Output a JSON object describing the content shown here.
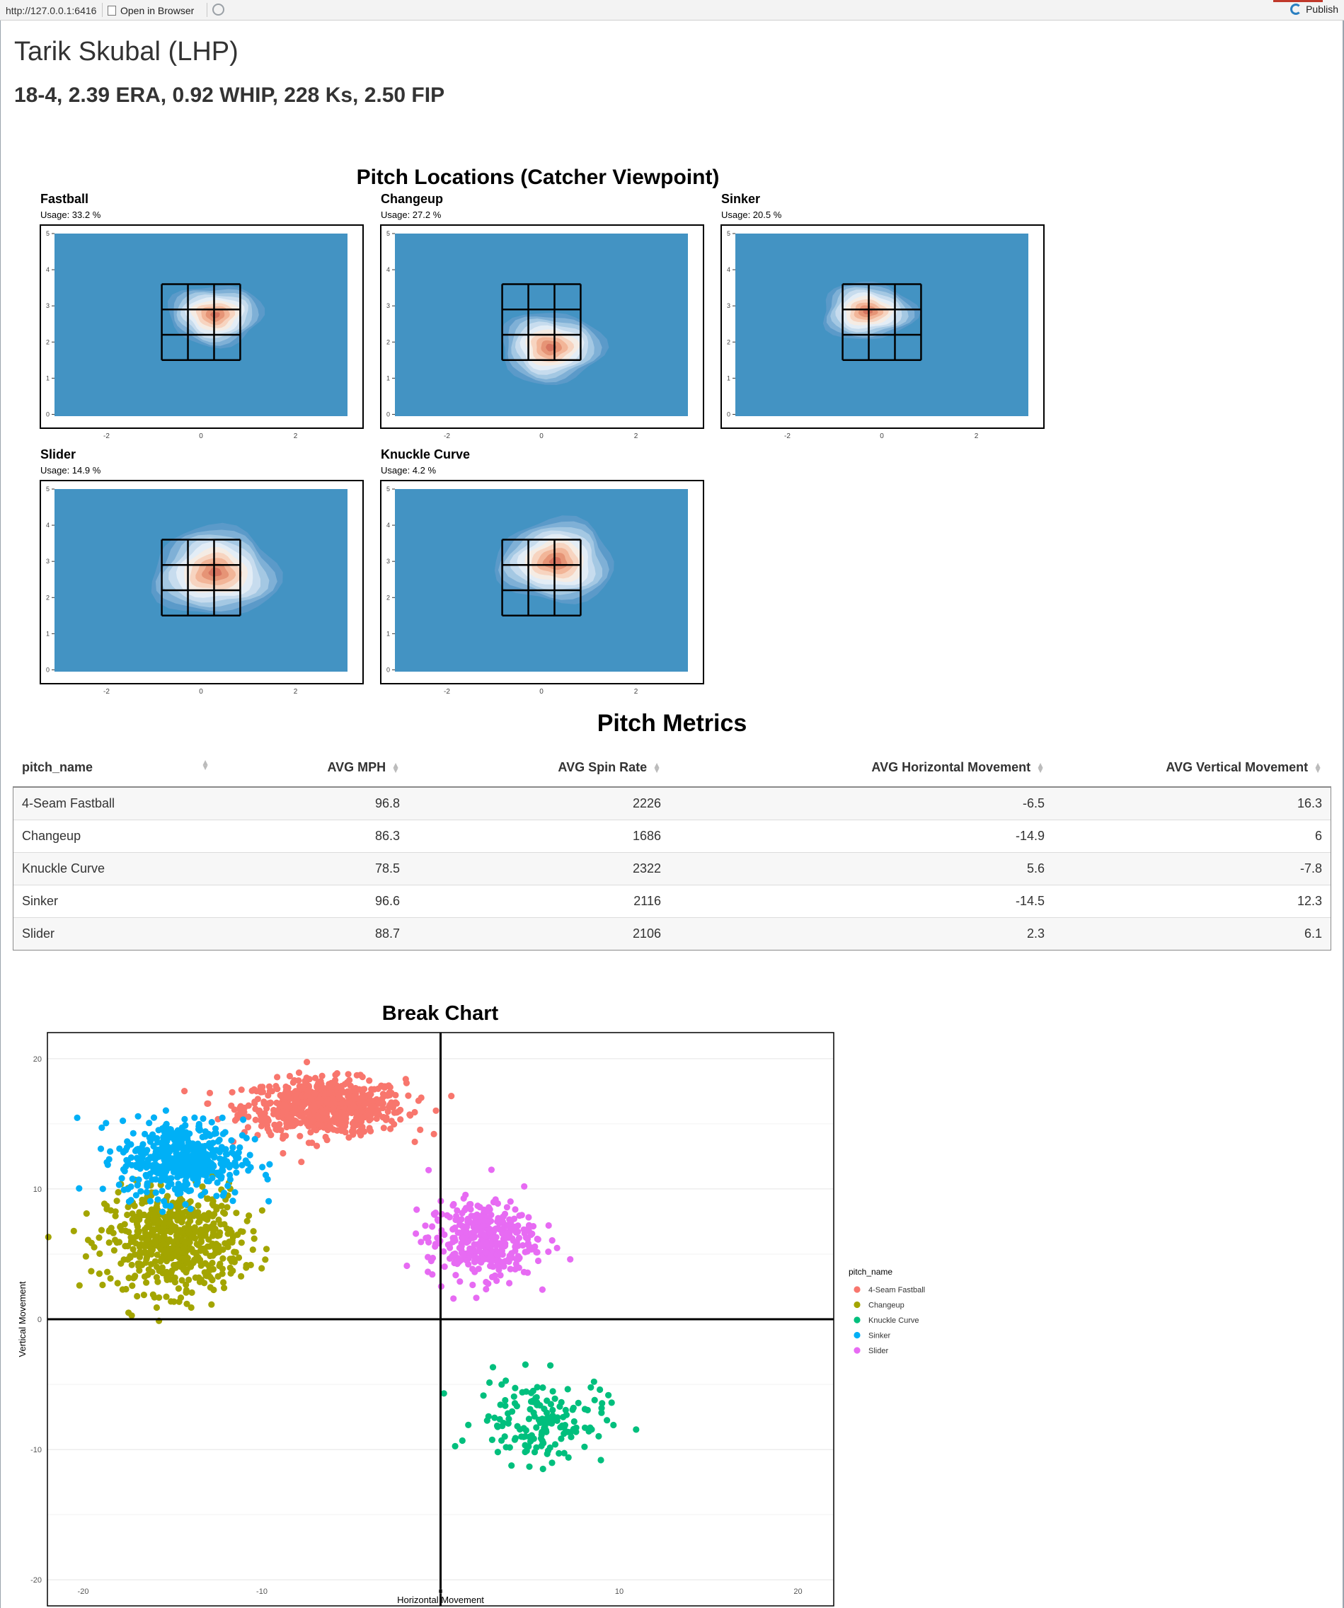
{
  "browser": {
    "url": "http://127.0.0.1:6416",
    "open_in_browser": "Open in Browser",
    "publish": "Publish"
  },
  "player": {
    "name": "Tarik Skubal (LHP)",
    "statline": "18-4, 2.39 ERA, 0.92 WHIP, 228 Ks, 2.50 FIP"
  },
  "locations": {
    "title": "Pitch Locations (Catcher Viewpoint)",
    "x_ticks": [
      "-2",
      "0",
      "2"
    ],
    "y_ticks": [
      "0",
      "1",
      "2",
      "3",
      "4",
      "5"
    ],
    "panels": [
      {
        "name": "Fastball",
        "usage": "Usage: 33.2 %",
        "hot": [
          0.3,
          2.75
        ],
        "spread": [
          1.0,
          0.85
        ],
        "peak": 1.0
      },
      {
        "name": "Changeup",
        "usage": "Usage: 27.2 %",
        "hot": [
          0.2,
          1.85
        ],
        "spread": [
          1.1,
          1.0
        ],
        "peak": 1.0
      },
      {
        "name": "Sinker",
        "usage": "Usage: 20.5 %",
        "hot": [
          -0.3,
          2.85
        ],
        "spread": [
          1.0,
          0.8
        ],
        "peak": 1.0
      },
      {
        "name": "Slider",
        "usage": "Usage: 14.9 %",
        "hot": [
          0.3,
          2.7
        ],
        "spread": [
          1.35,
          1.25
        ],
        "peak": 1.0
      },
      {
        "name": "Knuckle Curve",
        "usage": "Usage: 4.2 %",
        "hot": [
          0.3,
          3.0
        ],
        "spread": [
          1.25,
          1.3
        ],
        "peak": 0.9
      }
    ]
  },
  "metrics": {
    "title": "Pitch Metrics",
    "columns": [
      "pitch_name",
      "AVG MPH",
      "AVG Spin Rate",
      "AVG Horizontal Movement",
      "AVG Vertical Movement"
    ],
    "rows": [
      [
        "4-Seam Fastball",
        "96.8",
        "2226",
        "-6.5",
        "16.3"
      ],
      [
        "Changeup",
        "86.3",
        "1686",
        "-14.9",
        "6"
      ],
      [
        "Knuckle Curve",
        "78.5",
        "2322",
        "5.6",
        "-7.8"
      ],
      [
        "Sinker",
        "96.6",
        "2116",
        "-14.5",
        "12.3"
      ],
      [
        "Slider",
        "88.7",
        "2106",
        "2.3",
        "6.1"
      ]
    ]
  },
  "chart_data": {
    "type": "scatter",
    "title": "Break Chart",
    "xlabel": "Horizontal Movement",
    "ylabel": "Vertical Movement",
    "xlim": [
      -22,
      22
    ],
    "ylim": [
      -22,
      22
    ],
    "x_ticks": [
      -20,
      -10,
      0,
      10,
      20
    ],
    "y_ticks": [
      -20,
      -10,
      0,
      10,
      20
    ],
    "grid": true,
    "legend_title": "pitch_name",
    "legend_position": "right",
    "series": [
      {
        "name": "4-Seam Fastball",
        "color": "#F8766D",
        "center": [
          -6.5,
          16.3
        ],
        "sd": [
          3.0,
          1.4
        ],
        "n": 700
      },
      {
        "name": "Changeup",
        "color": "#A3A500",
        "center": [
          -14.9,
          6
        ],
        "sd": [
          2.5,
          2.6
        ],
        "n": 600
      },
      {
        "name": "Knuckle Curve",
        "color": "#00BF7D",
        "center": [
          5.6,
          -7.8
        ],
        "sd": [
          2.4,
          2.2
        ],
        "n": 160
      },
      {
        "name": "Sinker",
        "color": "#00B0F6",
        "center": [
          -14.5,
          12.3
        ],
        "sd": [
          2.3,
          2.0
        ],
        "n": 480
      },
      {
        "name": "Slider",
        "color": "#E76BF3",
        "center": [
          2.3,
          6.1
        ],
        "sd": [
          2.0,
          2.0
        ],
        "n": 380
      }
    ]
  }
}
